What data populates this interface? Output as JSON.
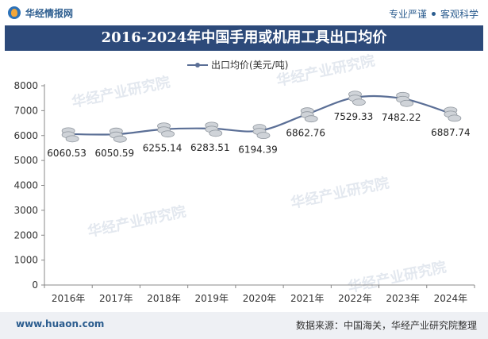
{
  "brand": {
    "name": "华经情报网",
    "tagline_left": "专业严谨",
    "tagline_right": "客观科学"
  },
  "title": "2016-2024年中国手用或机用工具出口均价",
  "footer": {
    "site": "www.huaon.com",
    "source": "数据来源：中国海关，华经产业研究院整理"
  },
  "watermark": "华经产业研究院",
  "colors": {
    "title_bg": "#2d4a7a",
    "line": "#5b6f96",
    "coin": "#cfd3d8",
    "brand": "#2c5d8f"
  },
  "chart_data": {
    "type": "line",
    "legend_position": "top",
    "categories": [
      "2016年",
      "2017年",
      "2018年",
      "2019年",
      "2020年",
      "2021年",
      "2022年",
      "2023年",
      "2024年"
    ],
    "series": [
      {
        "name": "出口均价(美元/吨)",
        "values": [
          6060.53,
          6050.59,
          6255.14,
          6283.51,
          6194.39,
          6862.76,
          7529.33,
          7482.22,
          6887.74
        ]
      }
    ],
    "data_labels": [
      "6060.53",
      "6050.59",
      "6255.14",
      "6283.51",
      "6194.39",
      "6862.76",
      "7529.33",
      "7482.22",
      "6887.74"
    ],
    "yticks": [
      "0",
      "1000",
      "2000",
      "3000",
      "4000",
      "5000",
      "6000",
      "7000",
      "8000"
    ],
    "ylim": [
      0,
      8000
    ],
    "grid": false
  }
}
